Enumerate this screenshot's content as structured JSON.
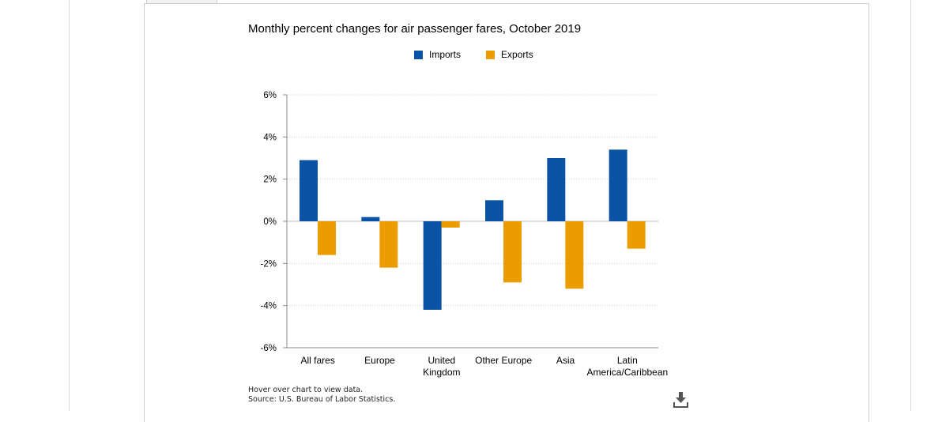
{
  "chart_data": {
    "type": "bar",
    "title": "Monthly percent changes for air passenger fares, October 2019",
    "categories": [
      [
        "All fares"
      ],
      [
        "Europe"
      ],
      [
        "United",
        "Kingdom"
      ],
      [
        "Other Europe"
      ],
      [
        "Asia"
      ],
      [
        "Latin",
        "America/Caribbean"
      ]
    ],
    "series": [
      {
        "name": "Imports",
        "color": "#0a53a5",
        "values": [
          2.9,
          0.2,
          -4.2,
          1.0,
          3.0,
          3.4
        ]
      },
      {
        "name": "Exports",
        "color": "#eb9d00",
        "values": [
          -1.6,
          -2.2,
          -0.3,
          -2.9,
          -3.2,
          -1.3
        ]
      }
    ],
    "ylim": [
      -6,
      6
    ],
    "yticks": [
      6,
      4,
      2,
      0,
      -2,
      -4,
      -6
    ],
    "ytick_labels": [
      "6%",
      "4%",
      "2%",
      "0%",
      "-2%",
      "-4%",
      "-6%"
    ],
    "grid": true,
    "legend_position": "top-center"
  },
  "footnotes": {
    "hover": "Hover over chart to view data.",
    "source": "Source: U.S. Bureau of Labor Statistics."
  },
  "icons": {
    "download": "download-icon"
  }
}
